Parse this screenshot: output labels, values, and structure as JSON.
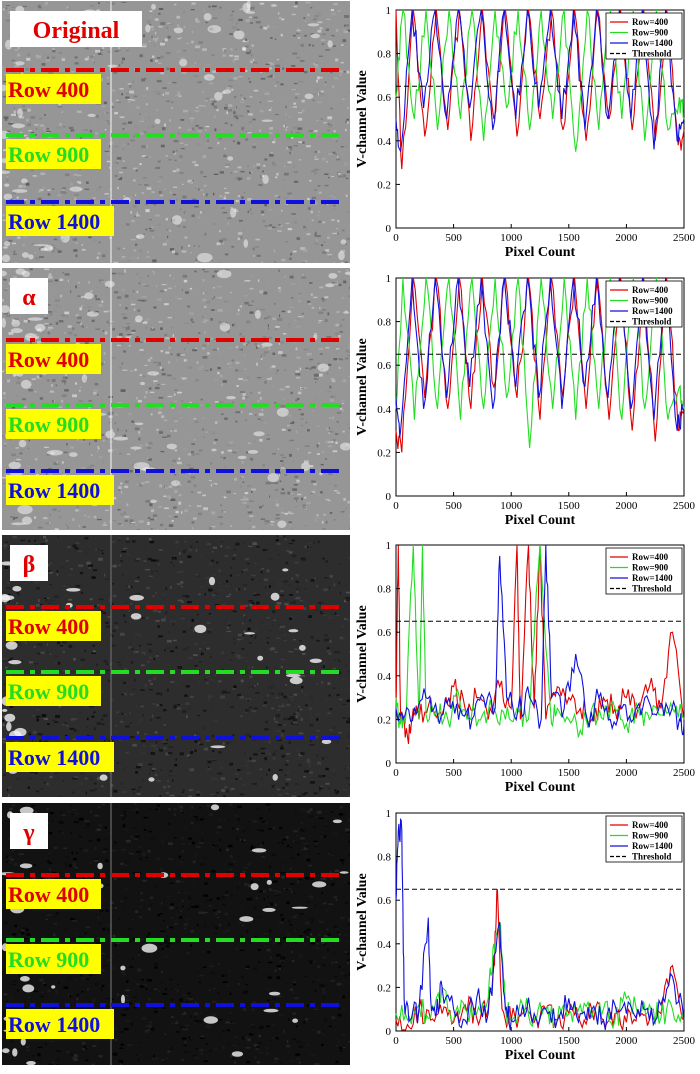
{
  "colors": {
    "red": "#e00000",
    "green": "#22dd22",
    "blue": "#1010dd",
    "label_bg": "#ffff00",
    "threshold": "#000000"
  },
  "panels": [
    {
      "id": "original",
      "tag": "Original",
      "tag_bg": "#ffffff",
      "brightness": "bright",
      "rows": [
        "Row 400",
        "Row 900",
        "Row 1400"
      ],
      "chart_data": {
        "type": "line",
        "xlabel": "Pixel Count",
        "ylabel": "V-channel Value",
        "xlim": [
          0,
          2500
        ],
        "ylim": [
          0,
          1
        ],
        "xticks": [
          0,
          500,
          1000,
          1500,
          2000,
          2500
        ],
        "yticks": [
          0,
          0.2,
          0.4,
          0.6,
          0.8,
          1
        ],
        "legend_position": "top-right",
        "threshold": 0.65,
        "legend": [
          "Row=400",
          "Row=900",
          "Row=1400",
          "Threshold"
        ],
        "series": [
          {
            "name": "Row=400",
            "color": "#e00000",
            "x": [
              0,
              50,
              150,
              250,
              350,
              450,
              550,
              650,
              750,
              850,
              950,
              1050,
              1150,
              1250,
              1350,
              1450,
              1550,
              1650,
              1750,
              1850,
              1950,
              2050,
              2150,
              2250,
              2350,
              2450,
              2500
            ],
            "y": [
              1.0,
              0.27,
              1.0,
              0.42,
              1.0,
              0.45,
              1.0,
              0.4,
              1.0,
              0.5,
              1.0,
              0.42,
              1.0,
              0.5,
              1.0,
              0.45,
              1.0,
              0.4,
              1.0,
              0.5,
              1.0,
              0.45,
              1.0,
              0.4,
              1.0,
              0.38,
              0.45
            ]
          },
          {
            "name": "Row=900",
            "color": "#22dd22",
            "x": [
              0,
              60,
              160,
              260,
              360,
              460,
              560,
              660,
              760,
              860,
              960,
              1060,
              1160,
              1260,
              1360,
              1460,
              1560,
              1660,
              1760,
              1860,
              1960,
              2060,
              2160,
              2260,
              2360,
              2460,
              2500
            ],
            "y": [
              0.6,
              1.0,
              0.5,
              1.0,
              0.45,
              1.0,
              0.5,
              1.0,
              0.4,
              1.0,
              0.55,
              1.0,
              0.45,
              1.0,
              0.5,
              1.0,
              0.35,
              1.0,
              0.45,
              1.0,
              0.5,
              1.0,
              0.4,
              1.0,
              0.45,
              0.6,
              0.5
            ]
          },
          {
            "name": "Row=1400",
            "color": "#1010dd",
            "x": [
              0,
              40,
              140,
              240,
              340,
              440,
              540,
              640,
              740,
              840,
              940,
              1040,
              1140,
              1240,
              1340,
              1440,
              1540,
              1640,
              1740,
              1840,
              1940,
              2040,
              2140,
              2240,
              2340,
              2440,
              2500
            ],
            "y": [
              0.5,
              0.35,
              1.0,
              0.55,
              1.0,
              0.5,
              1.0,
              0.55,
              1.0,
              0.45,
              1.0,
              0.5,
              1.0,
              0.55,
              1.0,
              0.5,
              1.0,
              0.45,
              1.0,
              0.5,
              1.0,
              0.5,
              1.0,
              0.36,
              1.0,
              0.4,
              0.5
            ]
          }
        ]
      }
    },
    {
      "id": "alpha",
      "tag": "α",
      "tag_bg": "#ffffff",
      "brightness": "bright",
      "rows": [
        "Row 400",
        "Row 900",
        "Row 1400"
      ],
      "chart_data": {
        "type": "line",
        "xlabel": "Pixel Count",
        "ylabel": "V-channel Value",
        "xlim": [
          0,
          2500
        ],
        "ylim": [
          0,
          1
        ],
        "xticks": [
          0,
          500,
          1000,
          1500,
          2000,
          2500
        ],
        "yticks": [
          0,
          0.2,
          0.4,
          0.6,
          0.8,
          1
        ],
        "legend_position": "top-right",
        "threshold": 0.65,
        "legend": [
          "Row=400",
          "Row=900",
          "Row=1400",
          "Threshold"
        ],
        "series": [
          {
            "name": "Row=400",
            "color": "#e00000",
            "x": [
              0,
              50,
              150,
              250,
              350,
              450,
              550,
              650,
              750,
              850,
              950,
              1050,
              1150,
              1250,
              1350,
              1450,
              1550,
              1650,
              1750,
              1850,
              1950,
              2050,
              2150,
              2250,
              2350,
              2450,
              2500
            ],
            "y": [
              0.3,
              0.2,
              1.0,
              0.45,
              1.0,
              0.4,
              1.0,
              0.4,
              1.0,
              0.5,
              1.0,
              0.45,
              1.0,
              0.35,
              1.0,
              0.45,
              1.0,
              0.4,
              1.0,
              0.35,
              1.0,
              0.3,
              1.0,
              0.25,
              1.0,
              0.3,
              0.4
            ]
          },
          {
            "name": "Row=900",
            "color": "#22dd22",
            "x": [
              0,
              60,
              160,
              260,
              360,
              460,
              560,
              660,
              760,
              860,
              960,
              1060,
              1160,
              1260,
              1360,
              1460,
              1560,
              1660,
              1760,
              1860,
              1960,
              2060,
              2160,
              2260,
              2360,
              2460,
              2500
            ],
            "y": [
              0.4,
              1.0,
              0.35,
              1.0,
              0.4,
              1.0,
              0.35,
              1.0,
              0.4,
              1.0,
              0.45,
              1.0,
              0.22,
              1.0,
              0.4,
              1.0,
              0.35,
              1.0,
              0.4,
              1.0,
              0.35,
              1.0,
              0.4,
              1.0,
              0.35,
              0.5,
              0.4
            ]
          },
          {
            "name": "Row=1400",
            "color": "#1010dd",
            "x": [
              0,
              40,
              140,
              240,
              340,
              440,
              540,
              640,
              740,
              840,
              940,
              1040,
              1140,
              1240,
              1340,
              1440,
              1540,
              1640,
              1740,
              1840,
              1940,
              2040,
              2140,
              2240,
              2340,
              2440,
              2500
            ],
            "y": [
              0.45,
              0.3,
              1.0,
              0.4,
              1.0,
              0.45,
              1.0,
              0.5,
              1.0,
              0.4,
              1.0,
              0.5,
              1.0,
              0.45,
              1.0,
              0.4,
              1.0,
              0.5,
              1.0,
              0.45,
              1.0,
              0.4,
              1.0,
              0.35,
              1.0,
              0.3,
              0.4
            ]
          }
        ]
      }
    },
    {
      "id": "beta",
      "tag": "β",
      "tag_bg": "#ffffff",
      "brightness": "dark",
      "rows": [
        "Row 400",
        "Row 900",
        "Row 1400"
      ],
      "chart_data": {
        "type": "line",
        "xlabel": "Pixel Count",
        "ylabel": "V-channel Value",
        "xlim": [
          0,
          2500
        ],
        "ylim": [
          0,
          1
        ],
        "xticks": [
          0,
          500,
          1000,
          1500,
          2000,
          2500
        ],
        "yticks": [
          0,
          0.2,
          0.4,
          0.6,
          0.8,
          1
        ],
        "legend_position": "top-right",
        "threshold": 0.65,
        "legend": [
          "Row=400",
          "Row=900",
          "Row=1400",
          "Threshold"
        ],
        "series": [
          {
            "name": "Row=400",
            "color": "#e00000",
            "x": [
              0,
              20,
              40,
              100,
              150,
              200,
              300,
              400,
              500,
              600,
              700,
              800,
              900,
              1000,
              1050,
              1080,
              1150,
              1200,
              1250,
              1300,
              1400,
              1500,
              1600,
              1700,
              1800,
              1900,
              2000,
              2100,
              2200,
              2300,
              2400,
              2500
            ],
            "y": [
              0.25,
              1.0,
              0.2,
              0.12,
              0.25,
              0.2,
              0.3,
              0.22,
              0.35,
              0.25,
              0.3,
              0.2,
              0.35,
              0.25,
              1.0,
              0.2,
              1.0,
              0.25,
              1.0,
              0.2,
              0.35,
              0.3,
              0.25,
              0.2,
              0.3,
              0.25,
              0.3,
              0.25,
              0.35,
              0.25,
              0.6,
              0.2
            ]
          },
          {
            "name": "Row=900",
            "color": "#22dd22",
            "x": [
              0,
              30,
              80,
              150,
              200,
              230,
              260,
              350,
              450,
              550,
              650,
              750,
              850,
              950,
              1050,
              1150,
              1250,
              1350,
              1400,
              1500,
              1600,
              1700,
              1800,
              1900,
              2000,
              2100,
              2200,
              2300,
              2400,
              2500
            ],
            "y": [
              0.3,
              0.2,
              0.18,
              1.0,
              0.2,
              1.0,
              0.22,
              0.25,
              0.2,
              0.3,
              0.2,
              0.22,
              0.25,
              0.2,
              0.25,
              0.2,
              1.0,
              0.18,
              0.25,
              0.2,
              0.15,
              0.25,
              0.2,
              0.25,
              0.18,
              0.25,
              0.2,
              0.22,
              0.25,
              0.2
            ]
          },
          {
            "name": "Row=1400",
            "color": "#1010dd",
            "x": [
              0,
              60,
              160,
              260,
              360,
              460,
              560,
              660,
              760,
              860,
              900,
              960,
              1060,
              1160,
              1260,
              1300,
              1350,
              1460,
              1560,
              1660,
              1760,
              1860,
              1960,
              2060,
              2160,
              2260,
              2360,
              2460,
              2500
            ],
            "y": [
              0.25,
              0.2,
              0.25,
              0.3,
              0.22,
              0.3,
              0.25,
              0.2,
              0.3,
              0.25,
              0.95,
              0.3,
              0.25,
              0.3,
              0.2,
              1.0,
              0.3,
              0.25,
              0.5,
              0.2,
              0.3,
              0.2,
              0.25,
              0.2,
              0.3,
              0.22,
              0.25,
              0.2,
              0.18
            ]
          }
        ]
      }
    },
    {
      "id": "gamma",
      "tag": "γ",
      "tag_bg": "#ffffff",
      "brightness": "darker",
      "rows": [
        "Row 400",
        "Row 900",
        "Row 1400"
      ],
      "chart_data": {
        "type": "line",
        "xlabel": "Pixel Count",
        "ylabel": "V-channel Value",
        "xlim": [
          0,
          2500
        ],
        "ylim": [
          0,
          1
        ],
        "xticks": [
          0,
          500,
          1000,
          1500,
          2000,
          2500
        ],
        "yticks": [
          0,
          0.2,
          0.4,
          0.6,
          0.8,
          1
        ],
        "legend_position": "top-right",
        "threshold": 0.65,
        "legend": [
          "Row=400",
          "Row=900",
          "Row=1400",
          "Threshold"
        ],
        "series": [
          {
            "name": "Row=400",
            "color": "#e00000",
            "x": [
              0,
              100,
              200,
              300,
              400,
              500,
              600,
              700,
              800,
              850,
              880,
              920,
              1000,
              1100,
              1200,
              1300,
              1400,
              1500,
              1600,
              1700,
              1800,
              1900,
              2000,
              2100,
              2200,
              2300,
              2400,
              2500
            ],
            "y": [
              0.05,
              0.03,
              0.1,
              0.05,
              0.08,
              0.04,
              0.12,
              0.06,
              0.1,
              0.3,
              0.65,
              0.1,
              0.05,
              0.08,
              0.04,
              0.1,
              0.05,
              0.08,
              0.04,
              0.1,
              0.05,
              0.08,
              0.04,
              0.1,
              0.05,
              0.08,
              0.3,
              0.05
            ]
          },
          {
            "name": "Row=900",
            "color": "#22dd22",
            "x": [
              0,
              100,
              200,
              300,
              400,
              500,
              600,
              700,
              800,
              850,
              900,
              950,
              1000,
              1100,
              1200,
              1300,
              1400,
              1500,
              1600,
              1700,
              1800,
              1900,
              2000,
              2100,
              2200,
              2300,
              2400,
              2500
            ],
            "y": [
              0.08,
              0.05,
              0.12,
              0.06,
              0.2,
              0.05,
              0.1,
              0.08,
              0.15,
              0.4,
              0.5,
              0.1,
              0.05,
              0.12,
              0.06,
              0.1,
              0.05,
              0.08,
              0.12,
              0.06,
              0.1,
              0.05,
              0.15,
              0.08,
              0.12,
              0.06,
              0.1,
              0.05
            ]
          },
          {
            "name": "Row=1400",
            "color": "#1010dd",
            "x": [
              0,
              20,
              50,
              70,
              120,
              200,
              280,
              300,
              350,
              400,
              500,
              600,
              700,
              800,
              900,
              950,
              1000,
              1100,
              1200,
              1300,
              1400,
              1500,
              1600,
              1700,
              1800,
              1900,
              2000,
              2100,
              2200,
              2300,
              2400,
              2500
            ],
            "y": [
              0.6,
              0.92,
              0.92,
              0.15,
              0.05,
              0.1,
              0.52,
              0.15,
              0.08,
              0.2,
              0.1,
              0.05,
              0.15,
              0.08,
              0.5,
              0.1,
              0.05,
              0.12,
              0.08,
              0.1,
              0.05,
              0.15,
              0.08,
              0.1,
              0.05,
              0.12,
              0.08,
              0.1,
              0.05,
              0.12,
              0.25,
              0.05
            ]
          }
        ]
      }
    }
  ]
}
